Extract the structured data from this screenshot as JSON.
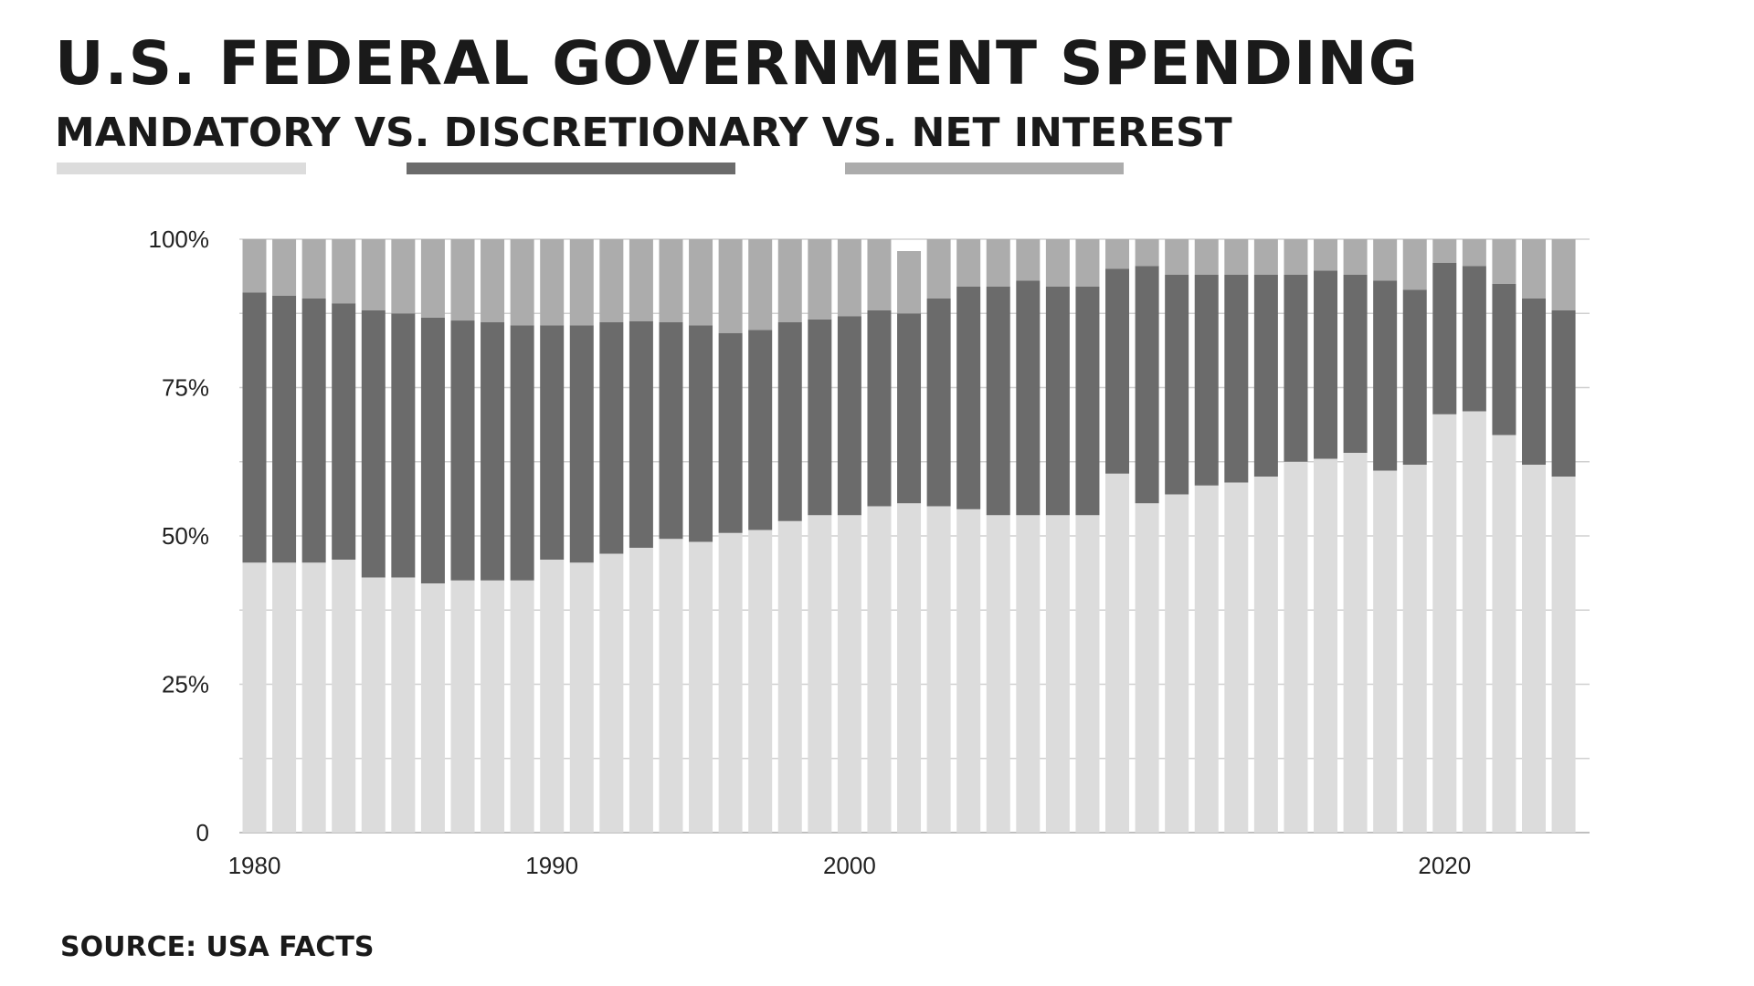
{
  "title": "U.S. FEDERAL GOVERNMENT SPENDING",
  "subtitle": "MANDATORY VS. DISCRETIONARY VS. NET INTEREST",
  "source": "SOURCE: USA FACTS",
  "colors": {
    "mandatory": "#dcdcdc",
    "discretionary": "#6b6b6b",
    "net_interest": "#acacac",
    "grid": "#d0d0d0",
    "axis": "#bfbfbf"
  },
  "chart_data": {
    "type": "bar",
    "stacked": true,
    "title": "U.S. FEDERAL GOVERNMENT SPENDING",
    "subtitle": "MANDATORY VS. DISCRETIONARY VS. NET INTEREST",
    "xlabel": "",
    "ylabel": "",
    "ylim": [
      0,
      100
    ],
    "y_ticks": [
      "0",
      "25%",
      "50%",
      "75%",
      "100%"
    ],
    "x_ticks": [
      "1980",
      "1990",
      "2000",
      "2020"
    ],
    "grid": true,
    "legend": "color-keyed underlines beneath the subtitle words",
    "categories": [
      1980,
      1981,
      1982,
      1983,
      1984,
      1985,
      1986,
      1987,
      1988,
      1989,
      1990,
      1991,
      1992,
      1993,
      1994,
      1995,
      1996,
      1997,
      1998,
      1999,
      2000,
      2001,
      2002,
      2003,
      2004,
      2005,
      2006,
      2007,
      2008,
      2009,
      2010,
      2011,
      2012,
      2013,
      2014,
      2015,
      2016,
      2017,
      2018,
      2019,
      2020,
      2021,
      2022,
      2023,
      2024
    ],
    "series": [
      {
        "name": "MANDATORY",
        "color": "#dcdcdc",
        "values": [
          45.5,
          45.5,
          45.5,
          46,
          43,
          43,
          42,
          42.5,
          42.5,
          42.5,
          46,
          45.5,
          47,
          48,
          49.5,
          49,
          50.5,
          51,
          52.5,
          53.5,
          53.5,
          55,
          55.5,
          55,
          54.5,
          53.5,
          53.5,
          53.5,
          53.5,
          60.5,
          55.5,
          57,
          58.5,
          59,
          60,
          62.5,
          63,
          64,
          61,
          62,
          70.5,
          71,
          67,
          62,
          60
        ]
      },
      {
        "name": "DISCRETIONARY",
        "color": "#6b6b6b",
        "values": [
          45.5,
          45,
          44.5,
          43.2,
          45,
          44.5,
          44.8,
          43.8,
          43.5,
          43,
          39.5,
          40,
          39,
          38.2,
          36.5,
          36.5,
          33.7,
          33.7,
          33.5,
          33,
          33.5,
          33,
          32,
          35,
          37.5,
          38.5,
          39.5,
          38.5,
          38.5,
          34.5,
          40,
          37,
          35.5,
          35,
          34,
          31.5,
          31.7,
          30,
          32,
          29.5,
          25.5,
          24.5,
          25.5,
          28,
          28
        ]
      },
      {
        "name": "NET INTEREST",
        "color": "#acacac",
        "values": [
          9,
          9.5,
          10,
          10.8,
          12,
          12.5,
          13.2,
          13.7,
          14,
          14.5,
          14.5,
          14.5,
          14,
          13.8,
          14,
          14.5,
          15.8,
          15.3,
          14,
          13.5,
          13,
          12,
          10.5,
          10,
          8,
          8,
          7,
          8,
          8,
          5,
          4.5,
          6,
          6,
          6,
          6,
          6,
          5.3,
          6,
          7,
          8.5,
          4,
          4.5,
          7.5,
          10,
          12
        ]
      }
    ]
  }
}
